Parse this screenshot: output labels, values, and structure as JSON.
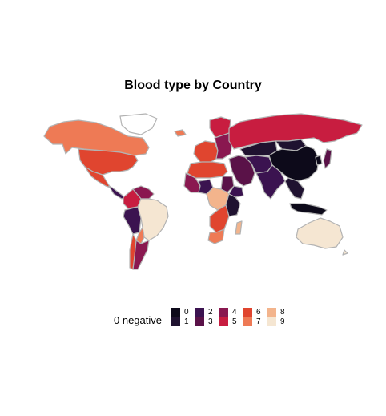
{
  "title": "Blood type by Country",
  "legend": {
    "title": "0 negative",
    "items": [
      {
        "label": "0",
        "color": "#0d0a1a"
      },
      {
        "label": "1",
        "color": "#1f1230"
      },
      {
        "label": "2",
        "color": "#3b1350"
      },
      {
        "label": "3",
        "color": "#5a1248"
      },
      {
        "label": "4",
        "color": "#8a1850"
      },
      {
        "label": "5",
        "color": "#c81d40"
      },
      {
        "label": "6",
        "color": "#e0452f"
      },
      {
        "label": "7",
        "color": "#ee7a55"
      },
      {
        "label": "8",
        "color": "#f3b48c"
      },
      {
        "label": "9",
        "color": "#f5e6d2"
      }
    ]
  },
  "regions": [
    {
      "name": "Canada",
      "value": 7
    },
    {
      "name": "United States",
      "value": 6
    },
    {
      "name": "Mexico",
      "value": 6
    },
    {
      "name": "Central America",
      "value": 2
    },
    {
      "name": "Colombia",
      "value": 5
    },
    {
      "name": "Venezuela",
      "value": 4
    },
    {
      "name": "Peru",
      "value": 2
    },
    {
      "name": "Brazil",
      "value": 9
    },
    {
      "name": "Bolivia",
      "value": 7
    },
    {
      "name": "Argentina",
      "value": 4
    },
    {
      "name": "Chile",
      "value": 6
    },
    {
      "name": "Greenland",
      "value": null
    },
    {
      "name": "Iceland",
      "value": 7
    },
    {
      "name": "Western Europe",
      "value": 6
    },
    {
      "name": "Scandinavia",
      "value": 5
    },
    {
      "name": "Eastern Europe",
      "value": 4
    },
    {
      "name": "Russia",
      "value": 5
    },
    {
      "name": "Kazakhstan",
      "value": 1
    },
    {
      "name": "Mongolia",
      "value": 1
    },
    {
      "name": "China",
      "value": 0
    },
    {
      "name": "Middle East",
      "value": 3
    },
    {
      "name": "Iran",
      "value": 2
    },
    {
      "name": "India",
      "value": 2
    },
    {
      "name": "Southeast Asia",
      "value": 1
    },
    {
      "name": "Japan",
      "value": 3
    },
    {
      "name": "Korea",
      "value": 0
    },
    {
      "name": "Indonesia",
      "value": 0
    },
    {
      "name": "Australia",
      "value": 9
    },
    {
      "name": "North Africa",
      "value": 6
    },
    {
      "name": "West Africa",
      "value": 4
    },
    {
      "name": "Nigeria",
      "value": 2
    },
    {
      "name": "Central Africa",
      "value": 8
    },
    {
      "name": "Sudan",
      "value": 3
    },
    {
      "name": "Ethiopia",
      "value": 2
    },
    {
      "name": "East Africa",
      "value": 1
    },
    {
      "name": "Southern Africa",
      "value": 6
    },
    {
      "name": "South Africa",
      "value": 7
    },
    {
      "name": "Madagascar",
      "value": 8
    }
  ]
}
